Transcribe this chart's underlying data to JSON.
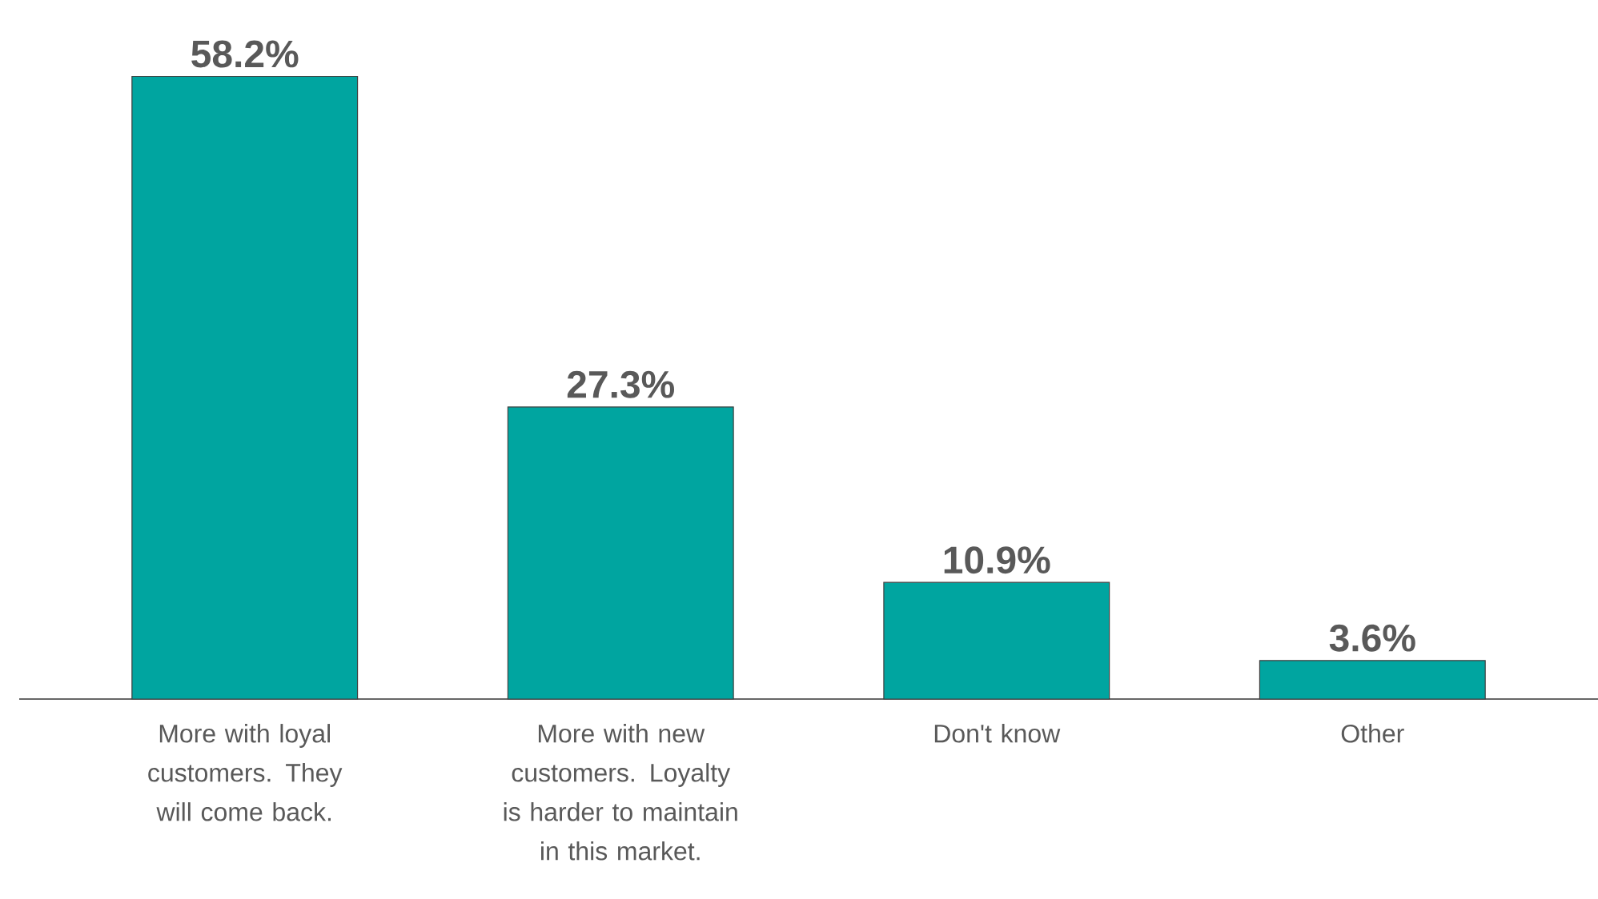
{
  "chart_data": {
    "type": "bar",
    "categories": [
      "More with loyal customers. They will come back.",
      "More with new customers. Loyalty is harder to maintain in this market.",
      "Don't know",
      "Other"
    ],
    "values": [
      58.2,
      27.3,
      10.9,
      3.6
    ],
    "color": "#00a5a0",
    "value_labels": [
      "58.2%",
      "27.3%",
      "10.9%",
      "3.6%"
    ]
  }
}
